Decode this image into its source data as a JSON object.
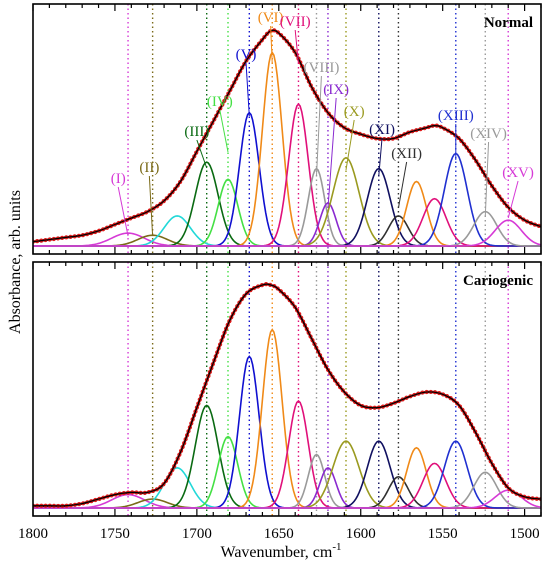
{
  "chart_data": {
    "type": "line",
    "xlabel": "Wavenumber, cm",
    "xlabel_sup": "-1",
    "ylabel": "Absorbance, arb. units",
    "xlim": [
      1800,
      1490
    ],
    "xticks": [
      1800,
      1750,
      1700,
      1650,
      1600,
      1550,
      1500
    ],
    "reversed_x": true,
    "bands": [
      {
        "label": "(I)",
        "center": 1742,
        "color": "#d63ad6"
      },
      {
        "label": "(II)",
        "center": 1727,
        "color": "#7a6a18"
      },
      {
        "label": "(III)",
        "center": 1694,
        "color": "#0a6a12"
      },
      {
        "label": "(IV)",
        "center": 1681,
        "color": "#44e044"
      },
      {
        "label": "(V)",
        "center": 1668,
        "color": "#1010d0"
      },
      {
        "label": "(VI)",
        "center": 1654,
        "color": "#f08a18"
      },
      {
        "label": "(VII)",
        "center": 1638,
        "color": "#e0107a"
      },
      {
        "label": "(VIII)",
        "center": 1627,
        "color": "#9a9a9a"
      },
      {
        "label": "(IX)",
        "center": 1620,
        "color": "#8a2ad0"
      },
      {
        "label": "(X)",
        "center": 1609,
        "color": "#9a9a20"
      },
      {
        "label": "(XI)",
        "center": 1589,
        "color": "#101060"
      },
      {
        "label": "(XII)",
        "center": 1577,
        "color": "#303030"
      },
      {
        "label": "(XIII)",
        "center": 1542,
        "color": "#2030d0"
      },
      {
        "label": "(XIV)",
        "center": 1524,
        "color": "#9a9a9a"
      },
      {
        "label": "(XV)",
        "center": 1510,
        "color": "#d63ad6"
      }
    ],
    "panels": [
      {
        "title": "Normal",
        "gaussians": [
          {
            "center": 1742,
            "amp": 0.06,
            "sigma": 10,
            "color": "#d63ad6"
          },
          {
            "center": 1727,
            "amp": 0.05,
            "sigma": 9,
            "color": "#7a6a18"
          },
          {
            "center": 1712,
            "amp": 0.14,
            "sigma": 8,
            "color": "#22d8d8"
          },
          {
            "center": 1694,
            "amp": 0.39,
            "sigma": 7,
            "color": "#0a6a12"
          },
          {
            "center": 1681,
            "amp": 0.31,
            "sigma": 6,
            "color": "#44e044"
          },
          {
            "center": 1668,
            "amp": 0.62,
            "sigma": 6,
            "color": "#1010d0"
          },
          {
            "center": 1654,
            "amp": 0.9,
            "sigma": 6,
            "color": "#f08a18"
          },
          {
            "center": 1638,
            "amp": 0.66,
            "sigma": 6,
            "color": "#e0107a"
          },
          {
            "center": 1627,
            "amp": 0.36,
            "sigma": 5,
            "color": "#9a9a9a"
          },
          {
            "center": 1620,
            "amp": 0.2,
            "sigma": 5,
            "color": "#8a2ad0"
          },
          {
            "center": 1609,
            "amp": 0.41,
            "sigma": 8,
            "color": "#9a9a20"
          },
          {
            "center": 1589,
            "amp": 0.36,
            "sigma": 7,
            "color": "#101060"
          },
          {
            "center": 1577,
            "amp": 0.14,
            "sigma": 6,
            "color": "#303030"
          },
          {
            "center": 1566,
            "amp": 0.3,
            "sigma": 6,
            "color": "#f08a18"
          },
          {
            "center": 1555,
            "amp": 0.22,
            "sigma": 7,
            "color": "#e0107a"
          },
          {
            "center": 1542,
            "amp": 0.43,
            "sigma": 7,
            "color": "#2030d0"
          },
          {
            "center": 1524,
            "amp": 0.16,
            "sigma": 7,
            "color": "#9a9a9a"
          },
          {
            "center": 1510,
            "amp": 0.12,
            "sigma": 8,
            "color": "#d63ad6"
          }
        ],
        "envelope": [
          [
            1800,
            0.02
          ],
          [
            1790,
            0.03
          ],
          [
            1780,
            0.04
          ],
          [
            1770,
            0.05
          ],
          [
            1760,
            0.07
          ],
          [
            1750,
            0.1
          ],
          [
            1740,
            0.13
          ],
          [
            1730,
            0.16
          ],
          [
            1720,
            0.21
          ],
          [
            1710,
            0.3
          ],
          [
            1700,
            0.44
          ],
          [
            1690,
            0.58
          ],
          [
            1680,
            0.72
          ],
          [
            1670,
            0.86
          ],
          [
            1660,
            0.96
          ],
          [
            1655,
            1.0
          ],
          [
            1650,
            0.99
          ],
          [
            1640,
            0.9
          ],
          [
            1630,
            0.74
          ],
          [
            1620,
            0.62
          ],
          [
            1610,
            0.55
          ],
          [
            1600,
            0.52
          ],
          [
            1590,
            0.5
          ],
          [
            1580,
            0.5
          ],
          [
            1570,
            0.53
          ],
          [
            1560,
            0.55
          ],
          [
            1555,
            0.56
          ],
          [
            1550,
            0.55
          ],
          [
            1540,
            0.5
          ],
          [
            1530,
            0.4
          ],
          [
            1520,
            0.28
          ],
          [
            1510,
            0.18
          ],
          [
            1500,
            0.12
          ],
          [
            1490,
            0.09
          ]
        ]
      },
      {
        "title": "Cariogenic",
        "gaussians": [
          {
            "center": 1742,
            "amp": 0.06,
            "sigma": 10,
            "color": "#d63ad6"
          },
          {
            "center": 1727,
            "amp": 0.04,
            "sigma": 9,
            "color": "#7a6a18"
          },
          {
            "center": 1712,
            "amp": 0.18,
            "sigma": 8,
            "color": "#22d8d8"
          },
          {
            "center": 1694,
            "amp": 0.46,
            "sigma": 7,
            "color": "#0a6a12"
          },
          {
            "center": 1681,
            "amp": 0.32,
            "sigma": 6,
            "color": "#44e044"
          },
          {
            "center": 1668,
            "amp": 0.68,
            "sigma": 6,
            "color": "#1010d0"
          },
          {
            "center": 1654,
            "amp": 0.8,
            "sigma": 6,
            "color": "#f08a18"
          },
          {
            "center": 1638,
            "amp": 0.48,
            "sigma": 6,
            "color": "#e0107a"
          },
          {
            "center": 1627,
            "amp": 0.24,
            "sigma": 5,
            "color": "#9a9a9a"
          },
          {
            "center": 1620,
            "amp": 0.18,
            "sigma": 5,
            "color": "#8a2ad0"
          },
          {
            "center": 1609,
            "amp": 0.3,
            "sigma": 8,
            "color": "#9a9a20"
          },
          {
            "center": 1589,
            "amp": 0.3,
            "sigma": 7,
            "color": "#101060"
          },
          {
            "center": 1577,
            "amp": 0.14,
            "sigma": 6,
            "color": "#303030"
          },
          {
            "center": 1566,
            "amp": 0.27,
            "sigma": 6,
            "color": "#f08a18"
          },
          {
            "center": 1555,
            "amp": 0.2,
            "sigma": 7,
            "color": "#e0107a"
          },
          {
            "center": 1542,
            "amp": 0.3,
            "sigma": 7,
            "color": "#2030d0"
          },
          {
            "center": 1524,
            "amp": 0.16,
            "sigma": 7,
            "color": "#9a9a9a"
          },
          {
            "center": 1510,
            "amp": 0.08,
            "sigma": 8,
            "color": "#d63ad6"
          }
        ],
        "envelope": [
          [
            1800,
            0.01
          ],
          [
            1790,
            0.01
          ],
          [
            1780,
            0.01
          ],
          [
            1770,
            0.02
          ],
          [
            1760,
            0.04
          ],
          [
            1750,
            0.06
          ],
          [
            1740,
            0.07
          ],
          [
            1730,
            0.07
          ],
          [
            1720,
            0.11
          ],
          [
            1710,
            0.25
          ],
          [
            1700,
            0.45
          ],
          [
            1690,
            0.65
          ],
          [
            1680,
            0.84
          ],
          [
            1670,
            0.96
          ],
          [
            1660,
            1.0
          ],
          [
            1655,
            1.0
          ],
          [
            1650,
            0.98
          ],
          [
            1640,
            0.9
          ],
          [
            1630,
            0.76
          ],
          [
            1620,
            0.62
          ],
          [
            1610,
            0.52
          ],
          [
            1600,
            0.46
          ],
          [
            1590,
            0.45
          ],
          [
            1580,
            0.47
          ],
          [
            1570,
            0.5
          ],
          [
            1560,
            0.52
          ],
          [
            1550,
            0.51
          ],
          [
            1540,
            0.46
          ],
          [
            1530,
            0.34
          ],
          [
            1520,
            0.2
          ],
          [
            1510,
            0.09
          ],
          [
            1500,
            0.05
          ],
          [
            1490,
            0.04
          ]
        ]
      }
    ]
  }
}
